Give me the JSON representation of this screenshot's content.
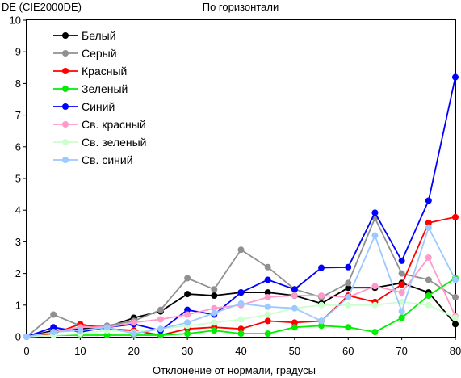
{
  "chart_data": {
    "type": "line",
    "title": "По горизонтали",
    "ylabel": "DE (CIE2000DE)",
    "xlabel": "Отклонение от нормали, градусы",
    "xlim": [
      0,
      80
    ],
    "ylim": [
      0,
      10
    ],
    "x_ticks": [
      0,
      10,
      20,
      30,
      40,
      50,
      60,
      70,
      80
    ],
    "y_ticks": [
      0,
      1,
      2,
      3,
      4,
      5,
      6,
      7,
      8,
      9,
      10
    ],
    "grid": false,
    "legend_position": "top-left",
    "x": [
      0,
      5,
      10,
      15,
      20,
      25,
      30,
      35,
      40,
      45,
      50,
      55,
      60,
      65,
      70,
      75,
      80
    ],
    "series": [
      {
        "name": "Белый",
        "color": "#000000",
        "values": [
          0,
          0.2,
          0.25,
          0.3,
          0.6,
          0.8,
          1.35,
          1.3,
          1.4,
          1.4,
          1.3,
          1.05,
          1.55,
          1.55,
          1.7,
          1.4,
          0.4
        ]
      },
      {
        "name": "Серый",
        "color": "#909090",
        "values": [
          0,
          0.7,
          0.35,
          0.35,
          0.5,
          0.85,
          1.85,
          1.5,
          2.75,
          2.2,
          1.5,
          1.25,
          1.7,
          3.75,
          2.0,
          1.8,
          1.25
        ]
      },
      {
        "name": "Красный",
        "color": "#ff0000",
        "values": [
          0,
          0.1,
          0.4,
          0.25,
          0.2,
          0.05,
          0.25,
          0.3,
          0.25,
          0.5,
          0.45,
          0.5,
          1.3,
          1.1,
          1.65,
          3.6,
          3.78
        ]
      },
      {
        "name": "Зеленый",
        "color": "#00ee00",
        "values": [
          0,
          0.05,
          0.05,
          0.05,
          0.05,
          0.05,
          0.1,
          0.2,
          0.1,
          0.1,
          0.3,
          0.35,
          0.3,
          0.15,
          0.6,
          1.3,
          1.85
        ]
      },
      {
        "name": "Синий",
        "color": "#0000ff",
        "values": [
          0,
          0.3,
          0.15,
          0.3,
          0.4,
          0.2,
          0.85,
          0.7,
          1.4,
          1.8,
          1.5,
          2.18,
          2.2,
          3.92,
          2.4,
          4.3,
          8.2
        ]
      },
      {
        "name": "Св. красный",
        "color": "#ff9acb",
        "values": [
          0,
          0.15,
          0.3,
          0.3,
          0.45,
          0.55,
          0.7,
          0.9,
          1.0,
          1.25,
          1.3,
          1.3,
          1.25,
          1.6,
          1.4,
          2.5,
          0.65
        ]
      },
      {
        "name": "Св. зеленый",
        "color": "#ccffcc",
        "values": [
          0,
          0.05,
          0.1,
          0.2,
          0.15,
          0.25,
          0.35,
          0.45,
          0.55,
          0.7,
          0.9,
          1.0,
          1.0,
          1.0,
          1.1,
          1.0,
          0.6
        ]
      },
      {
        "name": "Св. синий",
        "color": "#9cc9ff",
        "values": [
          0,
          0.15,
          0.2,
          0.3,
          0.1,
          0.25,
          0.45,
          0.75,
          1.05,
          0.95,
          0.9,
          0.5,
          1.25,
          3.2,
          0.8,
          3.45,
          1.8
        ]
      }
    ]
  }
}
